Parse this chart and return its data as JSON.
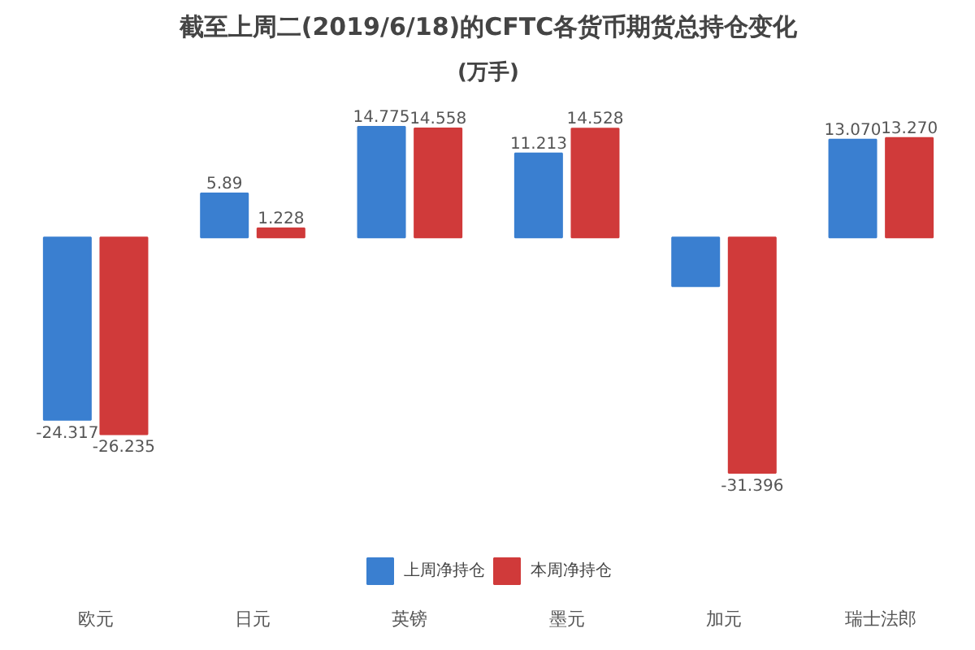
{
  "chart_data": {
    "type": "bar",
    "title": "截至上周二(2019/6/18)的CFTC各货币期货总持仓变化",
    "subtitle": "(万手)",
    "categories": [
      "欧元",
      "日元",
      "英镑",
      "墨元",
      "加元",
      "瑞士法郎"
    ],
    "series": [
      {
        "name": "上周净持仓",
        "color": "#3a7fd0",
        "values": [
          -24.317,
          5.89,
          14.775,
          11.213,
          -6.5,
          13.07
        ],
        "value_labels": [
          "-24.317",
          "5.89",
          "14.775",
          "11.213",
          null,
          "13.070"
        ]
      },
      {
        "name": "本周净持仓",
        "color": "#d03a3a",
        "values": [
          -26.235,
          1.228,
          14.558,
          14.528,
          -31.396,
          13.27
        ],
        "value_labels": [
          "-26.235",
          "1.228",
          "14.558",
          "14.528",
          "-31.396",
          "13.270"
        ]
      }
    ],
    "legend": "bottom"
  }
}
